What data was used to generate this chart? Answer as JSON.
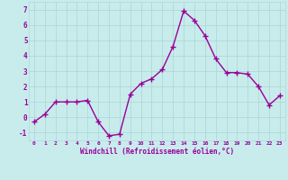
{
  "x": [
    0,
    1,
    2,
    3,
    4,
    5,
    6,
    7,
    8,
    9,
    10,
    11,
    12,
    13,
    14,
    15,
    16,
    17,
    18,
    19,
    20,
    21,
    22,
    23
  ],
  "y": [
    -0.3,
    0.2,
    1.0,
    1.0,
    1.0,
    1.1,
    -0.3,
    -1.2,
    -1.1,
    1.5,
    2.2,
    2.5,
    3.1,
    4.6,
    6.9,
    6.3,
    5.3,
    3.8,
    2.9,
    2.9,
    2.8,
    2.0,
    0.8,
    1.4
  ],
  "line_color": "#990099",
  "marker": "+",
  "marker_size": 4,
  "bg_color": "#c8ecec",
  "grid_color": "#b0d8d8",
  "xlabel": "Windchill (Refroidissement éolien,°C)",
  "xlabel_color": "#990099",
  "tick_color": "#990099",
  "ylim": [
    -1.5,
    7.5
  ],
  "xlim": [
    -0.5,
    23.5
  ],
  "yticks": [
    -1,
    0,
    1,
    2,
    3,
    4,
    5,
    6,
    7
  ],
  "xticks": [
    0,
    1,
    2,
    3,
    4,
    5,
    6,
    7,
    8,
    9,
    10,
    11,
    12,
    13,
    14,
    15,
    16,
    17,
    18,
    19,
    20,
    21,
    22,
    23
  ],
  "line_width": 1.0
}
